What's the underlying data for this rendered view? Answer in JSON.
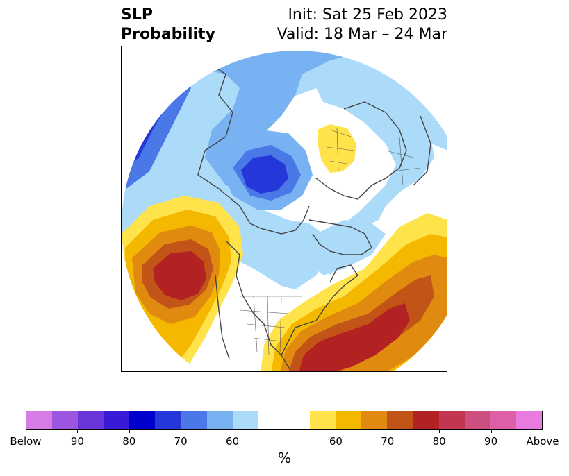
{
  "title": {
    "left_line1": "SLP",
    "left_line2": "Probability",
    "right_line1": "Init: Sat 25 Feb 2023",
    "right_line2": "Valid: 18 Mar – 24 Mar"
  },
  "colorbar": {
    "colors": [
      "#d77be6",
      "#9d55e0",
      "#6b36d9",
      "#3a1ad6",
      "#0000cc",
      "#2437d9",
      "#4a78e6",
      "#78b2f2",
      "#acdaf9",
      "#ffffff",
      "#ffffff",
      "#ffe34a",
      "#f4b800",
      "#e08a10",
      "#c25418",
      "#b22222",
      "#c33650",
      "#cc4f80",
      "#dc5fa8",
      "#e87ae0"
    ],
    "tick_labels": [
      "Below",
      "90",
      "80",
      "70",
      "60",
      "60",
      "70",
      "80",
      "90",
      "Above"
    ],
    "unit": "%"
  },
  "map": {
    "colors": {
      "blue_light": "#acdaf9",
      "blue_mid": "#78b2f2",
      "blue_med": "#4a78e6",
      "blue_dark": "#2437d9",
      "yellow": "#ffe34a",
      "gold": "#f4b800",
      "orange": "#e08a10",
      "rust": "#c25418",
      "red": "#b22222"
    }
  }
}
